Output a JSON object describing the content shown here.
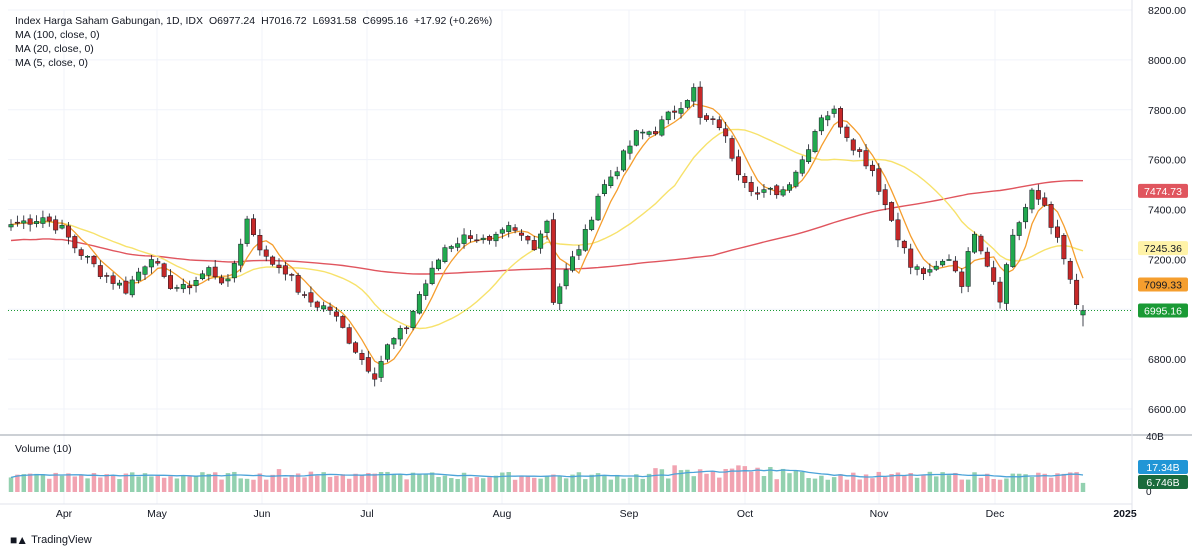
{
  "header": {
    "symbol": "Index Harga Saham Gabungan, 1D, IDX",
    "open": "O6977.24",
    "high": "H7016.72",
    "low": "L6931.58",
    "close": "C6995.16",
    "change": "+17.92 (+0.26%)"
  },
  "indicators": [
    {
      "label": "MA (100, close, 0)",
      "color": "#e0555e"
    },
    {
      "label": "MA (20, close, 0)",
      "color": "#f7e26b"
    },
    {
      "label": "MA (5, close, 0)",
      "color": "#f59e2e"
    }
  ],
  "volume_legend": "Volume (10)",
  "branding": "TradingView",
  "colors": {
    "up": "#22a94f",
    "down": "#c62828",
    "ma100": "#e0555e",
    "ma20": "#f7e26b",
    "ma5": "#f59e2e",
    "vol_up": "#93d1b0",
    "vol_down": "#f1a3b1",
    "vol_ma": "#4ba3d9",
    "last_price": "#1a9a35"
  },
  "chart_data": {
    "type": "candlestick",
    "yaxis": {
      "min": 6500,
      "max": 8200,
      "ticks": [
        "8200.00",
        "8000.00",
        "7800.00",
        "7600.00",
        "7400.00",
        "7200.00",
        "7000.00",
        "6800.00",
        "6600.00"
      ]
    },
    "volume_axis": {
      "max": 40,
      "ticks": [
        "40B",
        "0"
      ]
    },
    "x_labels": [
      "Apr",
      "May",
      "Jun",
      "Jul",
      "Aug",
      "Sep",
      "Oct",
      "Nov",
      "Dec",
      "2025"
    ],
    "price_labels": [
      {
        "value": "7474.73",
        "price": 7474.73,
        "color": "#e0555e",
        "text_color": "#ffffff"
      },
      {
        "value": "7245.36",
        "price": 7245.36,
        "color": "#fff3a8",
        "text_color": "#131722"
      },
      {
        "value": "7099.33",
        "price": 7099.33,
        "color": "#f59e2e",
        "text_color": "#131722"
      },
      {
        "value": "6995.16",
        "price": 6995.16,
        "color": "#1a9a35",
        "text_color": "#ffffff"
      }
    ],
    "volume_labels": [
      {
        "value": "17.34B",
        "vol": 17.34,
        "color": "#2196d6",
        "text_color": "#ffffff"
      },
      {
        "value": "6.746B",
        "vol": 6.746,
        "color": "#1a6b3c",
        "text_color": "#ffffff"
      }
    ],
    "close_anchors": [
      [
        0,
        7340
      ],
      [
        5,
        7370
      ],
      [
        8,
        7320
      ],
      [
        10,
        7250
      ],
      [
        14,
        7150
      ],
      [
        18,
        7080
      ],
      [
        22,
        7220
      ],
      [
        24,
        7110
      ],
      [
        27,
        7080
      ],
      [
        31,
        7160
      ],
      [
        34,
        7100
      ],
      [
        37,
        7360
      ],
      [
        40,
        7200
      ],
      [
        43,
        7160
      ],
      [
        46,
        7040
      ],
      [
        50,
        7000
      ],
      [
        53,
        6880
      ],
      [
        55,
        6800
      ],
      [
        57,
        6740
      ],
      [
        59,
        6850
      ],
      [
        62,
        6930
      ],
      [
        64,
        7060
      ],
      [
        66,
        7150
      ],
      [
        68,
        7250
      ],
      [
        72,
        7300
      ],
      [
        75,
        7260
      ],
      [
        78,
        7320
      ],
      [
        82,
        7260
      ],
      [
        84,
        7360
      ],
      [
        85,
        7040
      ],
      [
        87,
        7150
      ],
      [
        90,
        7300
      ],
      [
        92,
        7460
      ],
      [
        95,
        7570
      ],
      [
        98,
        7700
      ],
      [
        101,
        7720
      ],
      [
        104,
        7800
      ],
      [
        107,
        7880
      ],
      [
        108,
        7760
      ],
      [
        111,
        7740
      ],
      [
        114,
        7560
      ],
      [
        117,
        7460
      ],
      [
        121,
        7480
      ],
      [
        124,
        7600
      ],
      [
        127,
        7780
      ],
      [
        129,
        7790
      ],
      [
        132,
        7660
      ],
      [
        135,
        7560
      ],
      [
        137,
        7420
      ],
      [
        139,
        7300
      ],
      [
        141,
        7170
      ],
      [
        144,
        7140
      ],
      [
        147,
        7210
      ],
      [
        149,
        7110
      ],
      [
        151,
        7320
      ],
      [
        154,
        7120
      ],
      [
        155,
        7050
      ],
      [
        157,
        7300
      ],
      [
        160,
        7460
      ],
      [
        162,
        7420
      ],
      [
        164,
        7270
      ],
      [
        166,
        7120
      ],
      [
        167,
        7000
      ],
      [
        168,
        6995
      ]
    ],
    "candle_count": 169
  }
}
